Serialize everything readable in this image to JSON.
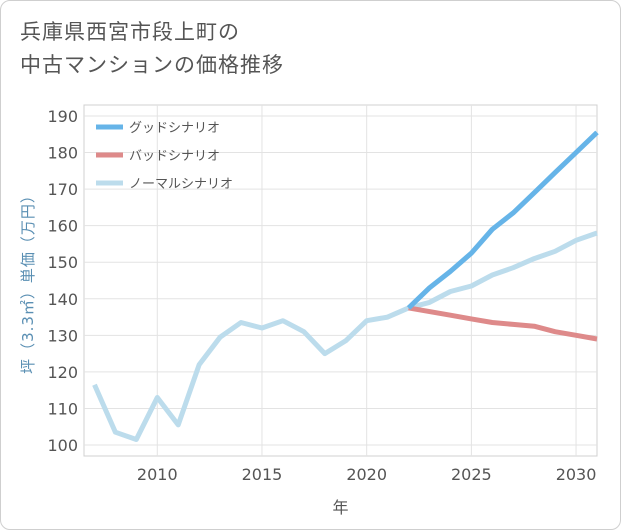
{
  "chart_data": {
    "type": "line",
    "title": [
      "兵庫県西宮市段上町の",
      "中古マンションの価格推移"
    ],
    "xlabel": "年",
    "ylabel": "坪（3.3㎡）単価（万円）",
    "xlim": [
      2006.5,
      2031
    ],
    "ylim": [
      97,
      193
    ],
    "xticks": [
      2010,
      2015,
      2020,
      2025,
      2030
    ],
    "yticks": [
      100,
      110,
      120,
      130,
      140,
      150,
      160,
      170,
      180,
      190
    ],
    "grid": true,
    "legend_position": "top-left",
    "series": [
      {
        "name": "グッドシナリオ",
        "color": "#66b4e8",
        "x": [
          2022,
          2023,
          2024,
          2025,
          2026,
          2027,
          2028,
          2029,
          2030,
          2031
        ],
        "values": [
          137.5,
          143,
          147.5,
          152.5,
          159,
          163.5,
          169,
          174.5,
          180,
          185.5
        ]
      },
      {
        "name": "バッドシナリオ",
        "color": "#de8a8a",
        "x": [
          2022,
          2023,
          2024,
          2025,
          2026,
          2027,
          2028,
          2029,
          2030,
          2031
        ],
        "values": [
          137.5,
          136.5,
          135.5,
          134.5,
          133.5,
          133,
          132.5,
          131,
          130,
          129
        ]
      },
      {
        "name": "ノーマルシナリオ",
        "color": "#bcdcec",
        "x": [
          2007,
          2008,
          2009,
          2010,
          2011,
          2012,
          2013,
          2014,
          2015,
          2016,
          2017,
          2018,
          2019,
          2020,
          2021,
          2022,
          2023,
          2024,
          2025,
          2026,
          2027,
          2028,
          2029,
          2030,
          2031
        ],
        "values": [
          116.5,
          103.5,
          101.5,
          113,
          105.5,
          122,
          129.5,
          133.5,
          132,
          134,
          131,
          125,
          128.5,
          134,
          135,
          137.5,
          139,
          142,
          143.5,
          146.5,
          148.5,
          151,
          153,
          156,
          158
        ]
      }
    ]
  }
}
